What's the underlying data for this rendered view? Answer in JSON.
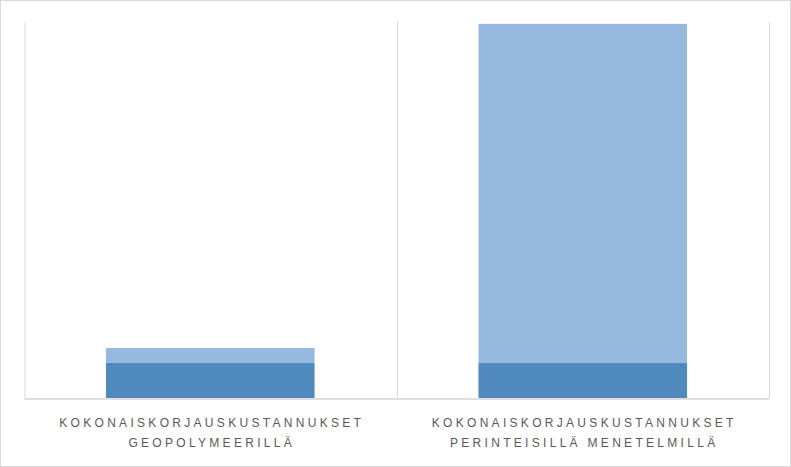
{
  "chart_data": {
    "type": "bar",
    "stacked": true,
    "grid": true,
    "tick_labels": "x",
    "categories": [
      "KOKONAISKORJAUSKUSTANNUKSET GEOPOLYMEERILLÄ",
      "KOKONAISKORJAUSKUSTANNUKSET PERINTEISILLÄ MENETELMILLÄ"
    ],
    "series": [
      {
        "color": "#4F89BE",
        "values": [
          9.3,
          9.3
        ]
      },
      {
        "color": "#98B9DF",
        "values": [
          4.0,
          90.2
        ]
      }
    ],
    "ylim": [
      0,
      100
    ]
  }
}
